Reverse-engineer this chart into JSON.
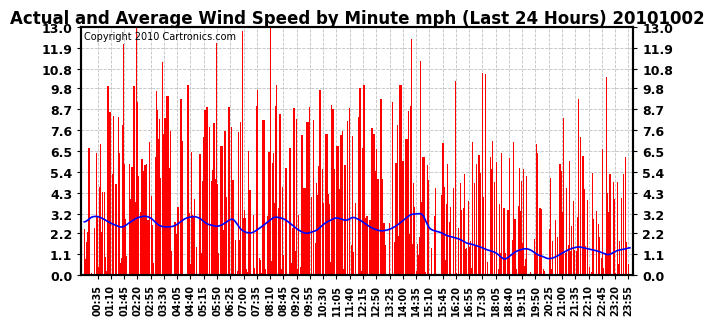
{
  "title": "Actual and Average Wind Speed by Minute mph (Last 24 Hours) 20101002",
  "copyright": "Copyright 2010 Cartronics.com",
  "yticks": [
    0.0,
    1.1,
    2.2,
    3.2,
    4.3,
    5.4,
    6.5,
    7.6,
    8.7,
    9.8,
    10.8,
    11.9,
    13.0
  ],
  "ylim": [
    0.0,
    13.0
  ],
  "bar_color": "#FF0000",
  "line_color": "#0000FF",
  "bg_color": "#FFFFFF",
  "grid_color": "#C0C0C0",
  "title_fontsize": 12,
  "copyright_fontsize": 7,
  "tick_label_fontsize": 7,
  "ytick_label_fontsize": 9,
  "tick_interval_minutes": 35
}
